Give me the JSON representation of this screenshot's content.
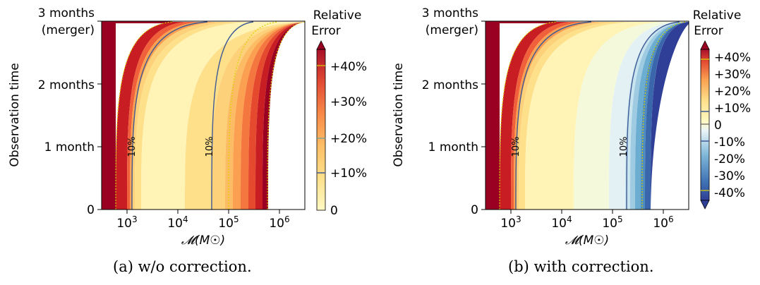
{
  "chart_data": [
    {
      "type": "heatmap",
      "caption": "(a) w/o correction.",
      "ylabel": "Observation time",
      "xlabel": "𝓜(M☉)",
      "y_ticks": [
        "0",
        "1 month",
        "2 months"
      ],
      "y_top_label": [
        "3 months",
        "(merger)"
      ],
      "x_ticks": [
        {
          "base": "10",
          "exp": "3"
        },
        {
          "base": "10",
          "exp": "4"
        },
        {
          "base": "10",
          "exp": "5"
        },
        {
          "base": "10",
          "exp": "6"
        }
      ],
      "xscale": "log",
      "xlim_log10": [
        2.5,
        6.5
      ],
      "ylim_months": [
        0,
        3
      ],
      "colorbar_title": [
        "Relative",
        "Error"
      ],
      "colorbar_labels": [
        "+40%",
        "+30%",
        "+20%",
        "+10%",
        "0"
      ],
      "contour_labels": [
        "10%",
        "10%"
      ]
    },
    {
      "type": "heatmap",
      "caption": "(b) with correction.",
      "ylabel": "Observation time",
      "xlabel": "𝓜(M☉)",
      "y_ticks": [
        "0",
        "1 month",
        "2 months"
      ],
      "y_top_label": [
        "3 months",
        "(merger)"
      ],
      "x_ticks": [
        {
          "base": "10",
          "exp": "3"
        },
        {
          "base": "10",
          "exp": "4"
        },
        {
          "base": "10",
          "exp": "5"
        },
        {
          "base": "10",
          "exp": "6"
        }
      ],
      "xscale": "log",
      "xlim_log10": [
        2.5,
        6.5
      ],
      "ylim_months": [
        0,
        3
      ],
      "colorbar_title": [
        "Relative",
        "Error"
      ],
      "colorbar_labels": [
        "+40%",
        "+30%",
        "+20%",
        "+10%",
        "0",
        "-10%",
        "-20%",
        "-30%",
        "-40%"
      ],
      "contour_labels": [
        "10%",
        "10%"
      ]
    }
  ],
  "colors": {
    "pos": [
      "#fff9c4",
      "#fff0a8",
      "#fee08b",
      "#fdd17a",
      "#fcbc63",
      "#fba050",
      "#f4773f",
      "#e64a2e",
      "#c81d22",
      "#990022"
    ],
    "neg": [
      "#eef7fb",
      "#d9eef6",
      "#b9dfee",
      "#94c8e0",
      "#6caed2",
      "#4d8dc1",
      "#3a66ac",
      "#2f3e96"
    ],
    "contour": "#3f5a95",
    "dotted": "#d9d300"
  }
}
